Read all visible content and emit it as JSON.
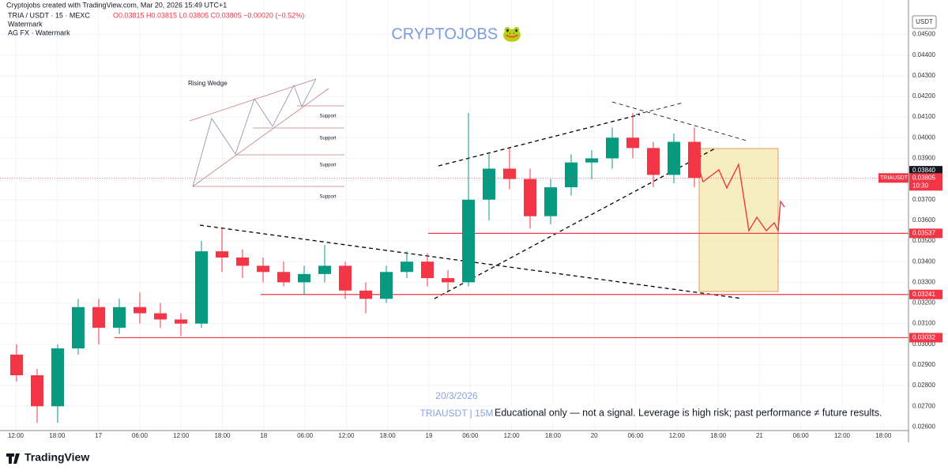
{
  "header": {
    "credit": "Cryptojobs created with TradingView.com, Mar 20, 2026 15:49 UTC+1",
    "symbol": "TRIA / USDT · 15 · MEXC",
    "ohlc": "O0.03815 H0.03815 L0.03805 C0.03805 −0.00020 (−0.52%)",
    "indicator1": "Watermark",
    "indicator2": "AG FX · Watermark",
    "brand": "CRYPTOJOBS 🐸"
  },
  "inset": {
    "title": "Rising Wedge",
    "supports": [
      "Support",
      "Support",
      "Support",
      "Support"
    ]
  },
  "footer": {
    "date": "20/3/2026",
    "pair": "TRIAUSDT | 15M",
    "disclaimer": "Educational only — not a signal. Leverage is high risk; past performance ≠ future results.",
    "logo": "TradingView"
  },
  "chart_data": {
    "type": "candlestick",
    "currency": "USDT",
    "open": [
      0.0295,
      0.0285,
      0.027,
      0.0298,
      0.0318,
      0.0308,
      0.0318,
      0.0315,
      0.0312,
      0.031,
      0.0345,
      0.0342,
      0.0338,
      0.0335,
      0.033,
      0.0334,
      0.0338,
      0.0326,
      0.0322,
      0.0335,
      0.034,
      0.0332,
      0.033,
      0.037,
      0.0385,
      0.038,
      0.0362,
      0.0376,
      0.0388,
      0.039,
      0.04,
      0.0395,
      0.0382,
      0.0398
    ],
    "high": [
      0.03,
      0.0288,
      0.03,
      0.0322,
      0.0322,
      0.0322,
      0.0325,
      0.032,
      0.0315,
      0.035,
      0.0356,
      0.0346,
      0.0342,
      0.034,
      0.0338,
      0.0348,
      0.034,
      0.033,
      0.0338,
      0.0345,
      0.0344,
      0.0336,
      0.0412,
      0.0392,
      0.0395,
      0.0385,
      0.038,
      0.0392,
      0.0394,
      0.0405,
      0.0412,
      0.0398,
      0.0402,
      0.0405
    ],
    "low": [
      0.0282,
      0.0262,
      0.0262,
      0.0295,
      0.03,
      0.0305,
      0.031,
      0.0308,
      0.0304,
      0.0308,
      0.0335,
      0.0332,
      0.033,
      0.0328,
      0.0324,
      0.033,
      0.0322,
      0.0315,
      0.032,
      0.0332,
      0.0328,
      0.0326,
      0.0328,
      0.036,
      0.0375,
      0.0356,
      0.0358,
      0.0372,
      0.038,
      0.0385,
      0.039,
      0.0376,
      0.0378,
      0.0376
    ],
    "close": [
      0.0285,
      0.027,
      0.0298,
      0.0318,
      0.0308,
      0.0318,
      0.0315,
      0.0312,
      0.031,
      0.0345,
      0.0342,
      0.0338,
      0.0335,
      0.033,
      0.0334,
      0.0338,
      0.0326,
      0.0322,
      0.0335,
      0.034,
      0.0332,
      0.033,
      0.037,
      0.0385,
      0.038,
      0.0362,
      0.0376,
      0.0388,
      0.039,
      0.04,
      0.0395,
      0.0382,
      0.0398,
      0.03805
    ],
    "up_color": "#089981",
    "down_color": "#f23645",
    "ylim": [
      0.0259,
      0.0459
    ],
    "yticks": [
      {
        "value": 0.026,
        "label": "0.02600"
      },
      {
        "value": 0.027,
        "label": "0.02700"
      },
      {
        "value": 0.028,
        "label": "0.02800"
      },
      {
        "value": 0.029,
        "label": "0.02900"
      },
      {
        "value": 0.03,
        "label": "0.03000"
      },
      {
        "value": 0.031,
        "label": "0.03100"
      },
      {
        "value": 0.032,
        "label": "0.03200"
      },
      {
        "value": 0.033,
        "label": "0.03300"
      },
      {
        "value": 0.034,
        "label": "0.03400"
      },
      {
        "value": 0.035,
        "label": "0.03500"
      },
      {
        "value": 0.036,
        "label": "0.03600"
      },
      {
        "value": 0.037,
        "label": "0.03700"
      },
      {
        "value": 0.038,
        "label": "0.03800"
      },
      {
        "value": 0.039,
        "label": "0.03900"
      },
      {
        "value": 0.04,
        "label": "0.04000"
      },
      {
        "value": 0.041,
        "label": "0.04100"
      },
      {
        "value": 0.042,
        "label": "0.04200"
      },
      {
        "value": 0.043,
        "label": "0.04300"
      },
      {
        "value": 0.044,
        "label": "0.04400"
      },
      {
        "value": 0.045,
        "label": "0.04500"
      }
    ],
    "xtick_labels": [
      "12:00",
      "18:00",
      "17",
      "06:00",
      "12:00",
      "18:00",
      "18",
      "06:00",
      "12:00",
      "18:00",
      "19",
      "06:00",
      "12:00",
      "18:00",
      "20",
      "06:00",
      "12:00",
      "18:00",
      "21",
      "06:00",
      "12:00",
      "18:00"
    ],
    "levels": [
      {
        "value": 0.03537,
        "label": "0.03537"
      },
      {
        "value": 0.03241,
        "label": "0.03241"
      },
      {
        "value": 0.03032,
        "label": "0.03032"
      }
    ],
    "last_price": {
      "value": 0.03805,
      "label": "0.03805",
      "name": "TRIAUSDT",
      "countdown": "10:30"
    },
    "prev_close": {
      "value": 0.0384,
      "label": "0.03840"
    }
  }
}
